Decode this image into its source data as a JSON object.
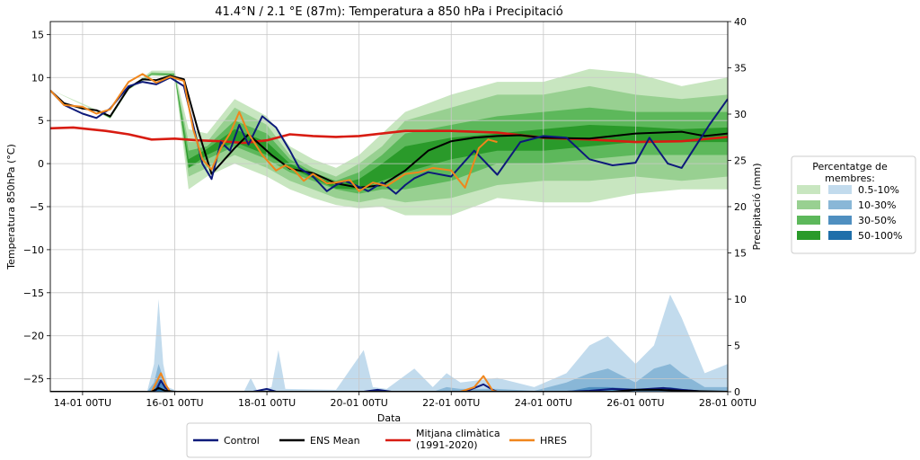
{
  "chart_data": {
    "type": "line",
    "title": "41.4°N / 2.1 °E (87m): Temperatura a 850 hPa i Precipitació",
    "xlabel": "Data",
    "ylabel_left": "Temperatura 850hPa (°C)",
    "ylabel_right": "Precipitació (mm)",
    "ylim_left": [
      -26.5,
      16.5
    ],
    "ylim_right": [
      0,
      40
    ],
    "yticks_left": [
      15,
      10,
      5,
      0,
      -5,
      -10,
      -15,
      -20,
      -25
    ],
    "yticks_right": [
      40,
      35,
      30,
      25,
      20,
      15,
      10,
      5,
      0
    ],
    "x_tick_labels": [
      "14-01 00TU",
      "16-01 00TU",
      "18-01 00TU",
      "20-01 00TU",
      "22-01 00TU",
      "24-01 00TU",
      "26-01 00TU",
      "28-01 00TU"
    ],
    "x_days": [
      0,
      2,
      4,
      6,
      8,
      10,
      12,
      14
    ],
    "x_start_day": -0.7,
    "x_end_day": 14.0,
    "grid": true,
    "legend_percent": {
      "title": "Percentatge de\nmembres:",
      "entries": [
        {
          "label": "0.5-10%",
          "temp_color": "#c8e6c0",
          "precip_color": "#c2dbed"
        },
        {
          "label": "10-30%",
          "temp_color": "#98d091",
          "precip_color": "#89b7d7"
        },
        {
          "label": "30-50%",
          "temp_color": "#5db85b",
          "precip_color": "#4f8fc0"
        },
        {
          "label": "50-100%",
          "temp_color": "#2a9a2a",
          "precip_color": "#1f6faa"
        }
      ]
    },
    "legend_lines": [
      {
        "label": "Control",
        "color": "#0d1a7a"
      },
      {
        "label": "ENS Mean",
        "color": "#000000"
      },
      {
        "label": "Mitjana climàtica\n(1991-2020)",
        "color": "#d81c12"
      },
      {
        "label": "HRES",
        "color": "#f0861c"
      }
    ],
    "temperature_bands": {
      "x": [
        -0.7,
        0.2,
        0.6,
        1.0,
        1.5,
        2.0,
        2.3,
        2.7,
        3.3,
        4.0,
        4.5,
        5.0,
        5.5,
        6.0,
        6.5,
        7.0,
        8.0,
        9.0,
        10.0,
        11.0,
        12.0,
        13.0,
        14.0
      ],
      "b1": [
        [
          8.6,
          8.6
        ],
        [
          6.5,
          6.3
        ],
        [
          5.5,
          5.2
        ],
        [
          8.8,
          8.6
        ],
        [
          10.8,
          10.2
        ],
        [
          10.8,
          10.0
        ],
        [
          4.0,
          -3.0
        ],
        [
          3.5,
          -1.5
        ],
        [
          7.5,
          0.0
        ],
        [
          5.5,
          -1.5
        ],
        [
          2.0,
          -3.0
        ],
        [
          0.5,
          -4.0
        ],
        [
          -0.5,
          -4.8
        ],
        [
          1.0,
          -5.2
        ],
        [
          3.5,
          -5.0
        ],
        [
          6.0,
          -6.0
        ],
        [
          8.0,
          -6.0
        ],
        [
          9.5,
          -4.0
        ],
        [
          9.5,
          -4.5
        ],
        [
          11.0,
          -4.5
        ],
        [
          10.5,
          -3.5
        ],
        [
          9.0,
          -3.0
        ],
        [
          10.0,
          -3.0
        ]
      ],
      "b2": [
        [
          8.5,
          8.5
        ],
        [
          6.4,
          6.4
        ],
        [
          5.4,
          5.3
        ],
        [
          8.7,
          8.7
        ],
        [
          10.6,
          10.3
        ],
        [
          10.5,
          10.2
        ],
        [
          2.5,
          -1.5
        ],
        [
          2.5,
          -0.5
        ],
        [
          6.5,
          1.0
        ],
        [
          4.5,
          -0.5
        ],
        [
          1.0,
          -2.0
        ],
        [
          -0.5,
          -3.0
        ],
        [
          -1.5,
          -4.0
        ],
        [
          0.0,
          -4.5
        ],
        [
          2.0,
          -4.0
        ],
        [
          5.0,
          -4.5
        ],
        [
          6.5,
          -4.0
        ],
        [
          8.0,
          -2.5
        ],
        [
          8.0,
          -2.0
        ],
        [
          9.0,
          -2.0
        ],
        [
          8.0,
          -1.5
        ],
        [
          7.5,
          -2.0
        ],
        [
          8.0,
          -1.5
        ]
      ],
      "b3": [
        [
          8.5,
          8.5
        ],
        [
          6.4,
          6.4
        ],
        [
          5.4,
          5.3
        ],
        [
          8.6,
          8.7
        ],
        [
          10.5,
          10.3
        ],
        [
          10.4,
          10.3
        ],
        [
          1.5,
          -0.5
        ],
        [
          2.0,
          0.5
        ],
        [
          5.0,
          2.0
        ],
        [
          3.5,
          0.5
        ],
        [
          0.5,
          -1.0
        ],
        [
          -1.0,
          -2.0
        ],
        [
          -2.0,
          -3.0
        ],
        [
          -1.0,
          -3.5
        ],
        [
          1.0,
          -3.0
        ],
        [
          3.5,
          -3.0
        ],
        [
          4.5,
          -2.0
        ],
        [
          5.5,
          0.0
        ],
        [
          6.0,
          0.0
        ],
        [
          6.5,
          0.5
        ],
        [
          6.0,
          1.0
        ],
        [
          6.0,
          1.0
        ],
        [
          6.0,
          1.0
        ]
      ],
      "b4": [
        [
          8.5,
          8.5
        ],
        [
          6.4,
          6.4
        ],
        [
          5.4,
          5.3
        ],
        [
          8.6,
          8.6
        ],
        [
          10.4,
          10.4
        ],
        [
          10.4,
          10.3
        ],
        [
          0.5,
          -0.5
        ],
        [
          1.7,
          1.0
        ],
        [
          4.0,
          2.5
        ],
        [
          2.5,
          1.0
        ],
        [
          0.0,
          -0.5
        ],
        [
          -1.3,
          -1.7
        ],
        [
          -2.5,
          -2.9
        ],
        [
          -1.8,
          -3.0
        ],
        [
          0.0,
          -2.0
        ],
        [
          2.0,
          -1.0
        ],
        [
          3.0,
          0.5
        ],
        [
          3.5,
          1.5
        ],
        [
          4.0,
          1.5
        ],
        [
          4.5,
          2.0
        ],
        [
          4.3,
          2.5
        ],
        [
          4.0,
          2.5
        ],
        [
          4.2,
          2.5
        ]
      ]
    },
    "precip_bands": {
      "x": [
        -0.7,
        1.4,
        1.55,
        1.65,
        1.75,
        1.85,
        2.1,
        3.5,
        3.65,
        3.8,
        4.1,
        4.25,
        4.4,
        5.5,
        6.1,
        6.3,
        6.6,
        7.2,
        7.6,
        7.9,
        8.2,
        9.0,
        9.8,
        10.5,
        11.0,
        11.4,
        12.0,
        12.4,
        12.75,
        13.0,
        13.5,
        14.0
      ],
      "b1": [
        0,
        0,
        3,
        10,
        3,
        0.5,
        0,
        0,
        1.5,
        0,
        0.5,
        4.5,
        0.3,
        0.2,
        4.5,
        0.5,
        0.3,
        2.5,
        0.5,
        2,
        1,
        1.5,
        0.5,
        2,
        5,
        6,
        3,
        5,
        10.5,
        8,
        2,
        3
      ],
      "b2": [
        0,
        0,
        1,
        3,
        1.5,
        0.2,
        0,
        0,
        0,
        0,
        0,
        0,
        0,
        0,
        0,
        0,
        0,
        0,
        0,
        0.5,
        0.3,
        0.3,
        0.1,
        1,
        2,
        2.5,
        1,
        2.5,
        3,
        2,
        0.5,
        0.5
      ],
      "b3": [
        0,
        0,
        0.3,
        1.5,
        0.8,
        0,
        0,
        0,
        0,
        0,
        0,
        0,
        0,
        0,
        0,
        0,
        0,
        0,
        0,
        0,
        0,
        0,
        0,
        0,
        0.5,
        0.5,
        0.3,
        0.3,
        0.5,
        0.3,
        0.1,
        0
      ],
      "b4": [
        0,
        0,
        0,
        0.6,
        0.3,
        0,
        0,
        0,
        0,
        0,
        0,
        0,
        0,
        0,
        0,
        0,
        0,
        0,
        0,
        0,
        0,
        0,
        0,
        0,
        0,
        0,
        0,
        0,
        0,
        0,
        0,
        0
      ]
    },
    "series": [
      {
        "name": "Mitjana climàtica\n(1991-2020)",
        "x": [
          -0.7,
          -0.2,
          0.5,
          1.0,
          1.5,
          2.0,
          2.5,
          3.0,
          3.5,
          4.0,
          4.5,
          5.0,
          5.5,
          6.0,
          7.0,
          8.0,
          9.0,
          10.0,
          11.0,
          12.0,
          13.0,
          14.0
        ],
        "values": [
          4.1,
          4.2,
          3.8,
          3.4,
          2.8,
          2.9,
          2.7,
          2.6,
          2.4,
          2.7,
          3.4,
          3.2,
          3.1,
          3.2,
          3.8,
          3.8,
          3.6,
          3.0,
          2.8,
          2.5,
          2.6,
          3.1
        ]
      },
      {
        "name": "ENS Mean",
        "x": [
          -0.7,
          -0.4,
          0.0,
          0.3,
          0.6,
          1.0,
          1.3,
          1.6,
          1.9,
          2.2,
          2.5,
          2.8,
          3.3,
          3.6,
          4.1,
          4.5,
          5.0,
          5.5,
          6.0,
          6.5,
          7.0,
          7.5,
          8.0,
          8.5,
          9.0,
          9.5,
          10.0,
          11.0,
          12.0,
          13.0,
          13.5,
          14.0
        ],
        "values": [
          8.5,
          7.0,
          6.4,
          6.2,
          5.5,
          8.8,
          9.8,
          9.7,
          10.2,
          9.8,
          4.0,
          -1.2,
          1.8,
          3.4,
          1.0,
          -0.6,
          -1.1,
          -2.3,
          -2.8,
          -2.5,
          -0.8,
          1.5,
          2.6,
          3.0,
          3.2,
          3.3,
          3.0,
          2.9,
          3.5,
          3.7,
          3.2,
          3.5
        ]
      },
      {
        "name": "Control",
        "x": [
          -0.7,
          -0.4,
          0.0,
          0.3,
          0.6,
          1.0,
          1.3,
          1.6,
          1.9,
          2.2,
          2.4,
          2.6,
          2.8,
          3.0,
          3.2,
          3.4,
          3.6,
          3.9,
          4.2,
          4.5,
          4.7,
          5.0,
          5.3,
          5.5,
          5.7,
          6.0,
          6.2,
          6.5,
          6.8,
          7.0,
          7.2,
          7.5,
          8.0,
          8.5,
          9.0,
          9.5,
          10.0,
          10.5,
          11.0,
          11.5,
          12.0,
          12.3,
          12.7,
          13.0,
          13.3,
          13.6,
          14.0
        ],
        "values": [
          8.5,
          6.8,
          5.8,
          5.3,
          6.4,
          9.0,
          9.5,
          9.2,
          10.0,
          9.0,
          4.5,
          0.0,
          -1.8,
          2.5,
          1.5,
          4.5,
          2.2,
          5.5,
          4.2,
          1.5,
          -0.5,
          -1.5,
          -3.2,
          -2.5,
          -2.0,
          -2.7,
          -3.2,
          -2.2,
          -3.5,
          -2.5,
          -1.7,
          -1.0,
          -1.5,
          1.5,
          -1.3,
          2.5,
          3.2,
          3.0,
          0.5,
          -0.2,
          0.1,
          3.0,
          0.0,
          -0.5,
          2.0,
          4.5,
          7.5
        ]
      },
      {
        "name": "HRES",
        "x": [
          -0.7,
          -0.4,
          0.0,
          0.3,
          0.6,
          1.0,
          1.3,
          1.6,
          1.9,
          2.2,
          2.4,
          2.6,
          2.8,
          3.0,
          3.2,
          3.4,
          3.6,
          3.9,
          4.2,
          4.4,
          4.6,
          4.8,
          5.0,
          5.3,
          5.5,
          5.8,
          6.0,
          6.3,
          6.6,
          7.0,
          7.3,
          7.6,
          8.0,
          8.3,
          8.6,
          8.8,
          9.0
        ],
        "values": [
          8.5,
          6.8,
          6.6,
          5.8,
          6.3,
          9.5,
          10.4,
          9.4,
          10.1,
          9.6,
          4.0,
          0.5,
          -0.7,
          1.8,
          3.5,
          6.0,
          3.5,
          1.0,
          -0.8,
          -0.2,
          -0.8,
          -2.0,
          -1.2,
          -2.3,
          -2.2,
          -1.9,
          -3.2,
          -2.2,
          -2.6,
          -1.2,
          -1.0,
          -0.5,
          -0.8,
          -2.8,
          1.8,
          2.8,
          2.5
        ]
      },
      {
        "name": "Control precip",
        "axis": "right",
        "x": [
          -0.7,
          1.5,
          1.6,
          1.7,
          1.8,
          1.9,
          3.7,
          4.0,
          4.2,
          6.1,
          6.4,
          6.7,
          8.3,
          8.7,
          8.9,
          9.0,
          10.5,
          11.0,
          11.5,
          12.0,
          12.3,
          12.6,
          13.0,
          13.5,
          14.0
        ],
        "values": [
          0,
          0,
          0.2,
          1.2,
          0.4,
          0,
          0,
          0.3,
          0,
          0,
          0.2,
          0,
          0,
          0.8,
          0.2,
          0,
          0,
          0.1,
          0.3,
          0.2,
          0.3,
          0.4,
          0.2,
          0,
          0
        ]
      },
      {
        "name": "HRES precip",
        "axis": "right",
        "x": [
          -0.7,
          1.5,
          1.6,
          1.7,
          1.8,
          1.9,
          8.2,
          8.5,
          8.7,
          8.8,
          8.9,
          9.0
        ],
        "values": [
          0,
          0,
          1.0,
          2.0,
          0.8,
          0,
          0,
          0.5,
          1.7,
          0.9,
          0.1,
          0
        ]
      },
      {
        "name": "ENS Mean precip",
        "axis": "right",
        "x": [
          -0.7,
          1.5,
          1.65,
          1.8,
          2.0,
          11.5,
          12.0,
          12.5,
          13.0,
          14.0
        ],
        "values": [
          0,
          0,
          0.4,
          0.1,
          0,
          0,
          0.2,
          0.2,
          0.1,
          0
        ]
      }
    ]
  }
}
